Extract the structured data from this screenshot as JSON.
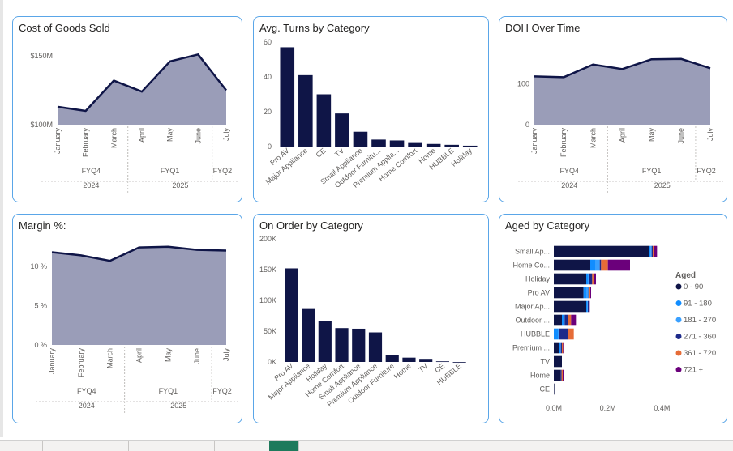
{
  "cards": {
    "cogs": {
      "title": "Cost of Goods Sold"
    },
    "turns": {
      "title": "Avg. Turns by Category"
    },
    "doh": {
      "title": "DOH Over Time"
    },
    "margin": {
      "title": "Margin %:"
    },
    "onorder": {
      "title": "On Order by Category"
    },
    "aged": {
      "title": "Aged by Category"
    }
  },
  "chart_data": [
    {
      "id": "cogs",
      "type": "area",
      "title": "Cost of Goods Sold",
      "x": [
        "January",
        "February",
        "March",
        "April",
        "May",
        "June",
        "July"
      ],
      "values": [
        113,
        110,
        132,
        124,
        146,
        151,
        125
      ],
      "yticks": [
        100,
        150
      ],
      "ytick_labels": [
        "$100M",
        "$150M"
      ],
      "ylim": [
        100,
        150
      ],
      "hierarchy": [
        {
          "level": "quarter",
          "groups": [
            {
              "label": "FYQ4",
              "span": 3
            },
            {
              "label": "FYQ1",
              "span": 3
            },
            {
              "label": "FYQ2",
              "span": 1
            }
          ]
        },
        {
          "level": "year",
          "groups": [
            {
              "label": "2024",
              "span": 3
            },
            {
              "label": "2025",
              "span": 4
            }
          ]
        }
      ],
      "colors": {
        "fill": "#9a9db8",
        "line": "#0f1547"
      }
    },
    {
      "id": "turns",
      "type": "bar",
      "title": "Avg. Turns by Category",
      "categories": [
        "Pro AV",
        "Major Appliance",
        "CE",
        "TV",
        "Small Appliance",
        "Outdoor Furnitu...",
        "Premium Applia...",
        "Home Comfort",
        "Home",
        "HUBBLE",
        "Holiday"
      ],
      "values": [
        57,
        41,
        30,
        19,
        8.5,
        4,
        3.5,
        2.5,
        1.5,
        1,
        0.5
      ],
      "yticks": [
        0,
        20,
        40,
        60
      ],
      "ylim": [
        0,
        60
      ],
      "colors": {
        "bar": "#0f1547"
      }
    },
    {
      "id": "doh",
      "type": "area",
      "title": "DOH Over Time",
      "x": [
        "January",
        "February",
        "March",
        "April",
        "May",
        "June",
        "July"
      ],
      "values": [
        118,
        116,
        147,
        136,
        160,
        161,
        138
      ],
      "yticks": [
        0,
        100
      ],
      "ytick_labels": [
        "0",
        "100"
      ],
      "ylim": [
        0,
        200
      ],
      "hierarchy": [
        {
          "level": "quarter",
          "groups": [
            {
              "label": "FYQ4",
              "span": 3
            },
            {
              "label": "FYQ1",
              "span": 3
            },
            {
              "label": "FYQ2",
              "span": 1
            }
          ]
        },
        {
          "level": "year",
          "groups": [
            {
              "label": "2024",
              "span": 3
            },
            {
              "label": "2025",
              "span": 4
            }
          ]
        }
      ],
      "colors": {
        "fill": "#9a9db8",
        "line": "#0f1547"
      }
    },
    {
      "id": "margin",
      "type": "area",
      "title": "Margin %:",
      "x": [
        "January",
        "February",
        "March",
        "April",
        "May",
        "June",
        "July"
      ],
      "values": [
        11.8,
        11.4,
        10.7,
        12.4,
        12.5,
        12.1,
        12.0
      ],
      "yticks": [
        0,
        5,
        10
      ],
      "ytick_labels": [
        "0 %",
        "5 %",
        "10 %"
      ],
      "ylim": [
        0,
        13.5
      ],
      "hierarchy": [
        {
          "level": "quarter",
          "groups": [
            {
              "label": "FYQ4",
              "span": 3
            },
            {
              "label": "FYQ1",
              "span": 3
            },
            {
              "label": "FYQ2",
              "span": 1
            }
          ]
        },
        {
          "level": "year",
          "groups": [
            {
              "label": "2024",
              "span": 3
            },
            {
              "label": "2025",
              "span": 4
            }
          ]
        }
      ],
      "colors": {
        "fill": "#9a9db8",
        "line": "#0f1547"
      }
    },
    {
      "id": "onorder",
      "type": "bar",
      "title": "On Order by Category",
      "categories": [
        "Pro AV",
        "Major Appliance",
        "Holiday",
        "Home Comfort",
        "Small Appliance",
        "Premium Appliance",
        "Outdoor Furniture",
        "Home",
        "TV",
        "CE",
        "HUBBLE"
      ],
      "values": [
        152000,
        86000,
        67000,
        55000,
        54000,
        48000,
        11000,
        7000,
        5000,
        1000,
        0
      ],
      "yticks": [
        0,
        50000,
        100000,
        150000,
        200000
      ],
      "ytick_labels": [
        "0K",
        "50K",
        "100K",
        "150K",
        "200K"
      ],
      "ylim": [
        0,
        200000
      ],
      "colors": {
        "bar": "#0f1547"
      }
    },
    {
      "id": "aged",
      "type": "bar",
      "orientation": "horizontal",
      "stacked": true,
      "title": "Aged by Category",
      "categories": [
        "Small Ap...",
        "Home Co...",
        "Holiday",
        "Pro AV",
        "Major Ap...",
        "Outdoor ...",
        "HUBBLE",
        "Premium ...",
        "TV",
        "Home",
        "CE"
      ],
      "legend_title": "Aged",
      "series": [
        {
          "name": "0 - 90",
          "color": "#0f1547",
          "values": [
            0.352,
            0.135,
            0.12,
            0.11,
            0.12,
            0.03,
            0.0,
            0.02,
            0.03,
            0.025,
            0.002
          ]
        },
        {
          "name": "91 - 180",
          "color": "#118dff",
          "values": [
            0.006,
            0.02,
            0.006,
            0.01,
            0.004,
            0.006,
            0.015,
            0.004,
            0,
            0,
            0
          ]
        },
        {
          "name": "181 - 270",
          "color": "#3aa0ff",
          "values": [
            0.004,
            0.015,
            0.004,
            0.008,
            0.002,
            0.004,
            0.005,
            0.002,
            0,
            0,
            0
          ]
        },
        {
          "name": "271 - 360",
          "color": "#1d2a8a",
          "values": [
            0.004,
            0.005,
            0.012,
            0.004,
            0.003,
            0.012,
            0.032,
            0.004,
            0,
            0.004,
            0
          ]
        },
        {
          "name": "361 - 720",
          "color": "#e66c37",
          "values": [
            0.004,
            0.025,
            0.008,
            0.003,
            0.002,
            0.012,
            0.022,
            0.004,
            0,
            0.004,
            0
          ]
        },
        {
          "name": "721 +",
          "color": "#6b007b",
          "values": [
            0.012,
            0.082,
            0.006,
            0.003,
            0.002,
            0.018,
            0.0,
            0.002,
            0,
            0.005,
            0
          ]
        }
      ],
      "xticks": [
        0,
        0.2,
        0.4
      ],
      "xtick_labels": [
        "0.0M",
        "0.2M",
        "0.4M"
      ],
      "xlim": [
        0,
        0.42
      ],
      "legend_position": "right"
    }
  ]
}
